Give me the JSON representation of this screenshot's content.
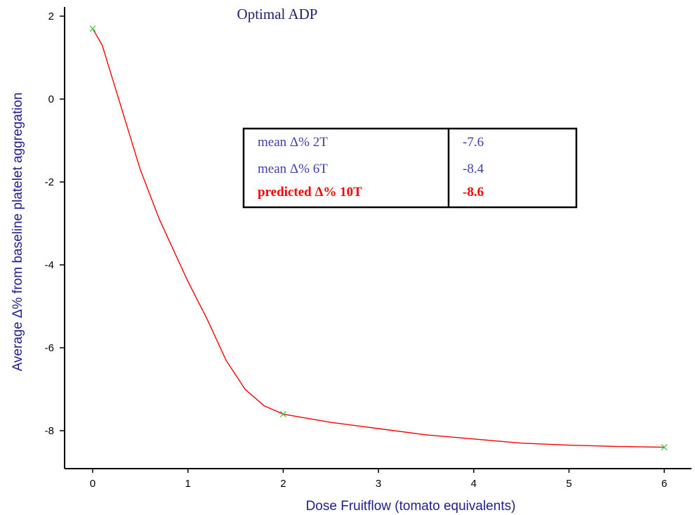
{
  "chart_data": {
    "type": "line",
    "title": "Optimal ADP",
    "xlabel": "Dose Fruitflow (tomato equivalents)",
    "ylabel": "Average Δ% from baseline platelet aggregation",
    "xlim": [
      -0.3,
      6.3
    ],
    "ylim": [
      -8.9,
      2.1
    ],
    "x_ticks": [
      0,
      1,
      2,
      3,
      4,
      5,
      6
    ],
    "y_ticks": [
      2,
      0,
      -2,
      -4,
      -6,
      -8
    ],
    "points": {
      "x": [
        0,
        2,
        6
      ],
      "y": [
        1.7,
        -7.6,
        -8.4
      ]
    },
    "curve": {
      "x": [
        0,
        0.1,
        0.3,
        0.5,
        0.7,
        0.9,
        1.0,
        1.2,
        1.4,
        1.6,
        1.8,
        2.0,
        2.5,
        3.0,
        3.5,
        4.0,
        4.5,
        5.0,
        5.5,
        6.0
      ],
      "y": [
        1.7,
        1.3,
        -0.2,
        -1.7,
        -2.9,
        -3.9,
        -4.4,
        -5.3,
        -6.3,
        -7.0,
        -7.4,
        -7.6,
        -7.8,
        -7.95,
        -8.1,
        -8.2,
        -8.3,
        -8.35,
        -8.38,
        -8.4
      ]
    },
    "grid": false,
    "colors": {
      "curve": "#ff0000",
      "markers": "#33cc33",
      "axis_text": "#1f1f8f"
    },
    "table": {
      "rows": [
        {
          "label": "mean Δ% 2T",
          "value": "-7.6",
          "highlight": false
        },
        {
          "label": "mean Δ% 6T",
          "value": "-8.4",
          "highlight": false
        },
        {
          "label": "predicted Δ% 10T",
          "value": "-8.6",
          "highlight": true
        }
      ]
    }
  }
}
